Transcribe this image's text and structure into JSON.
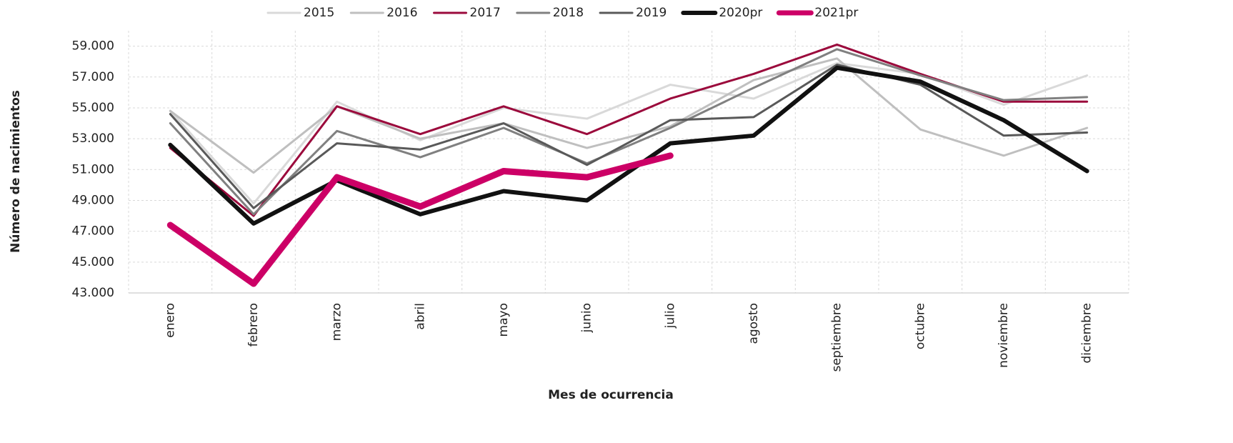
{
  "chart_data": {
    "type": "line",
    "y_label": "Número de nacimientos",
    "x_label": "Mes de ocurrencia",
    "categories": [
      "enero",
      "febrero",
      "marzo",
      "abril",
      "mayo",
      "junio",
      "julio",
      "agosto",
      "septiembre",
      "octubre",
      "noviembre",
      "diciembre"
    ],
    "ylim": [
      43000,
      60000
    ],
    "yticks": [
      {
        "value": 43000,
        "label": "43.000"
      },
      {
        "value": 45000,
        "label": "45.000"
      },
      {
        "value": 47000,
        "label": "47.000"
      },
      {
        "value": 49000,
        "label": "49.000"
      },
      {
        "value": 51000,
        "label": "51.000"
      },
      {
        "value": 53000,
        "label": "53.000"
      },
      {
        "value": 55000,
        "label": "55.000"
      },
      {
        "value": 57000,
        "label": "57.000"
      },
      {
        "value": 59000,
        "label": "59.000"
      }
    ],
    "grid": true,
    "legend": "top",
    "series": [
      {
        "name": "2015",
        "color": "#d9d9d9",
        "values": [
          54800,
          48800,
          55400,
          52900,
          55000,
          54300,
          56500,
          55600,
          57900,
          57200,
          55200,
          57100
        ]
      },
      {
        "name": "2016",
        "color": "#bfbfbf",
        "values": [
          54800,
          50800,
          55100,
          53000,
          54000,
          52400,
          53800,
          56800,
          58200,
          53600,
          51900,
          53700
        ]
      },
      {
        "name": "2017",
        "color": "#9b0a3c",
        "values": [
          52400,
          48000,
          55100,
          53300,
          55100,
          53300,
          55600,
          57200,
          59100,
          57200,
          55400,
          55400
        ]
      },
      {
        "name": "2018",
        "color": "#808080",
        "values": [
          54000,
          48100,
          53500,
          51800,
          53700,
          51400,
          53700,
          56300,
          58800,
          57100,
          55500,
          55700
        ]
      },
      {
        "name": "2019",
        "color": "#595959",
        "values": [
          54600,
          48500,
          52700,
          52300,
          54000,
          51300,
          54200,
          54400,
          57800,
          56500,
          53200,
          53400
        ]
      },
      {
        "name": "2020pr",
        "color": "#111111",
        "values": [
          52600,
          47500,
          50300,
          48100,
          49600,
          49000,
          52700,
          53200,
          57600,
          56700,
          54200,
          50900
        ]
      },
      {
        "name": "2021pr",
        "color": "#cc0066",
        "values": [
          47400,
          43600,
          50500,
          48600,
          50900,
          50500,
          51900,
          null,
          null,
          null,
          null,
          null
        ]
      }
    ]
  }
}
